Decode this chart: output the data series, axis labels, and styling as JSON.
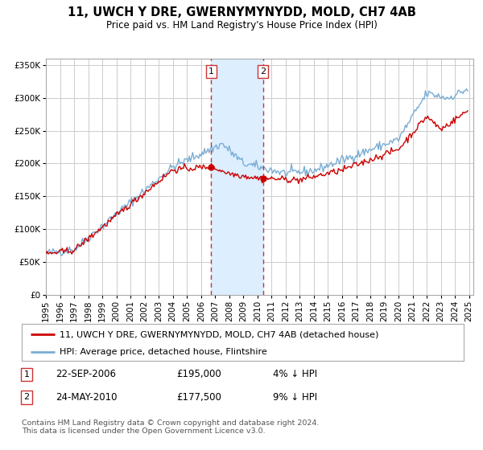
{
  "title": "11, UWCH Y DRE, GWERNYMYNYDD, MOLD, CH7 4AB",
  "subtitle": "Price paid vs. HM Land Registry's House Price Index (HPI)",
  "ylim": [
    0,
    360000
  ],
  "yticks": [
    0,
    50000,
    100000,
    150000,
    200000,
    250000,
    300000,
    350000
  ],
  "ytick_labels": [
    "£0",
    "£50K",
    "£100K",
    "£150K",
    "£200K",
    "£250K",
    "£300K",
    "£350K"
  ],
  "xlim_start": 1995.0,
  "xlim_end": 2025.3,
  "sale1_date": 2006.72,
  "sale1_price": 195000,
  "sale1_label": "1",
  "sale1_text": "22-SEP-2006",
  "sale1_price_text": "£195,000",
  "sale1_hpi_text": "4% ↓ HPI",
  "sale2_date": 2010.38,
  "sale2_price": 177500,
  "sale2_label": "2",
  "sale2_text": "24-MAY-2010",
  "sale2_price_text": "£177,500",
  "sale2_hpi_text": "9% ↓ HPI",
  "property_line_color": "#cc0000",
  "hpi_line_color": "#7aadd4",
  "sale_marker_color": "#cc0000",
  "annotation_box_color": "#cc3333",
  "shade_color": "#ddeeff",
  "legend_label_property": "11, UWCH Y DRE, GWERNYMYNYDD, MOLD, CH7 4AB (detached house)",
  "legend_label_hpi": "HPI: Average price, detached house, Flintshire",
  "footer_text": "Contains HM Land Registry data © Crown copyright and database right 2024.\nThis data is licensed under the Open Government Licence v3.0.",
  "background_color": "#ffffff",
  "grid_color": "#cccccc",
  "title_fontsize": 10.5,
  "subtitle_fontsize": 8.5,
  "tick_fontsize": 7.5,
  "legend_fontsize": 8,
  "annotation_fontsize": 8.5
}
